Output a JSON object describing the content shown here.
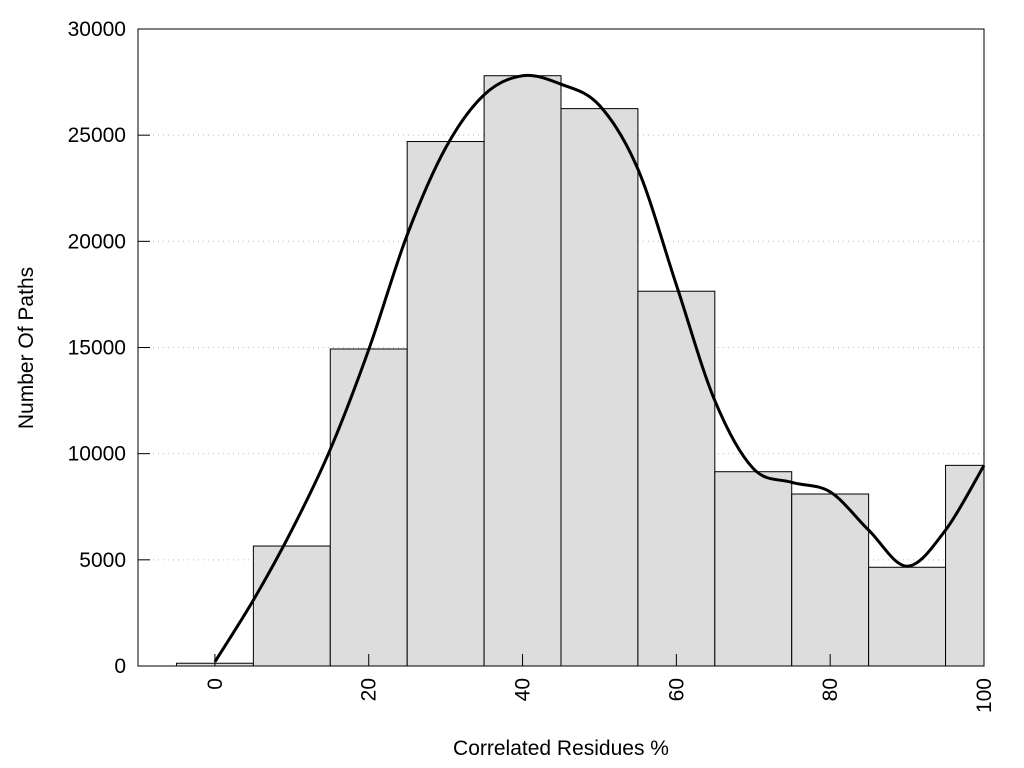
{
  "chart_data": {
    "type": "bar",
    "title": "",
    "xlabel": "Correlated Residues %",
    "ylabel": "Number Of Paths",
    "xlim": [
      -10,
      100
    ],
    "ylim": [
      0,
      30000
    ],
    "grid": "horizontal dotted",
    "bin_width": 10,
    "x_ticks": [
      0,
      20,
      40,
      60,
      80,
      100
    ],
    "y_ticks": [
      0,
      5000,
      10000,
      15000,
      20000,
      25000,
      30000
    ],
    "categories": [
      0,
      10,
      20,
      30,
      40,
      50,
      60,
      70,
      80,
      90,
      100
    ],
    "values": [
      130,
      5650,
      14930,
      24700,
      27800,
      26250,
      17650,
      9150,
      8100,
      4650,
      9450
    ],
    "bar_color": "#dddddd",
    "curve": {
      "type": "line",
      "color": "#000000",
      "x": [
        0,
        5,
        10,
        15,
        20,
        25,
        30,
        35,
        40,
        45,
        50,
        55,
        60,
        65,
        70,
        75,
        80,
        85,
        90,
        95,
        100
      ],
      "y": [
        200,
        3100,
        6400,
        10200,
        14900,
        20300,
        24400,
        26900,
        27800,
        27400,
        26400,
        23400,
        17950,
        12500,
        9300,
        8650,
        8200,
        6400,
        4700,
        6400,
        9450
      ]
    }
  }
}
